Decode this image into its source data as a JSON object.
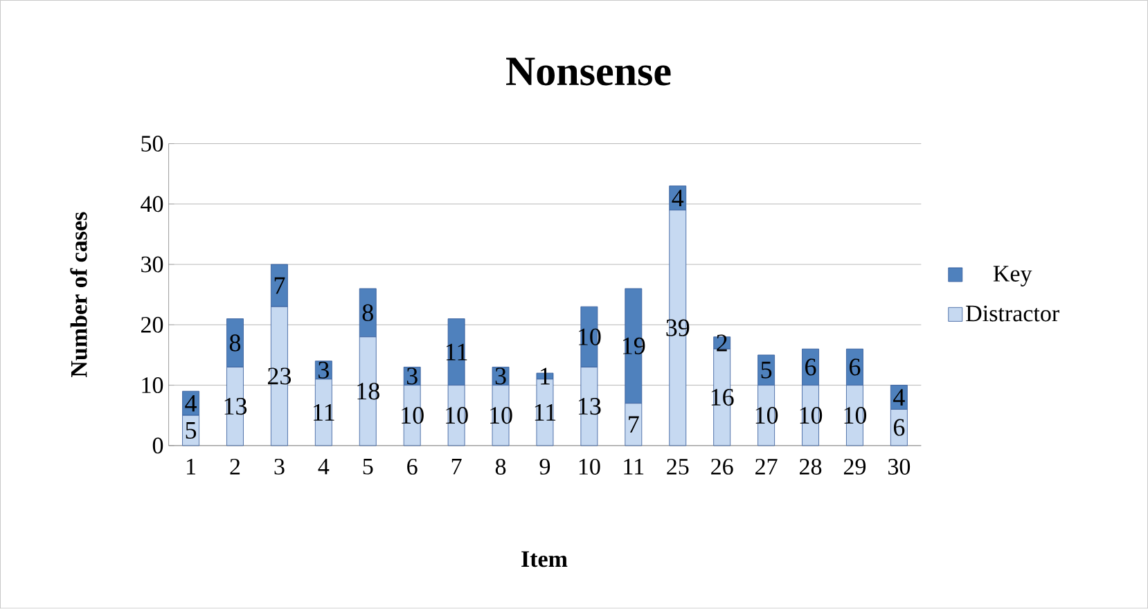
{
  "chart_data": {
    "type": "bar",
    "title": "Nonsense",
    "xlabel": "Item",
    "ylabel": "Number of cases",
    "categories": [
      "1",
      "2",
      "3",
      "4",
      "5",
      "6",
      "7",
      "8",
      "9",
      "10",
      "11",
      "25",
      "26",
      "27",
      "28",
      "29",
      "30"
    ],
    "series": [
      {
        "name": "Distractor",
        "color": "#c6d9f1",
        "values": [
          5,
          13,
          23,
          11,
          18,
          10,
          10,
          10,
          11,
          13,
          7,
          39,
          16,
          10,
          10,
          10,
          6
        ]
      },
      {
        "name": "Key",
        "color": "#4f81bd",
        "values": [
          4,
          8,
          7,
          3,
          8,
          3,
          11,
          3,
          1,
          10,
          19,
          4,
          2,
          5,
          6,
          6,
          4
        ]
      }
    ],
    "stacked": true,
    "data_labels": true,
    "grid": "y",
    "legend": "right",
    "ylim": [
      0,
      50
    ],
    "yticks": [
      0,
      10,
      20,
      30,
      40,
      50
    ]
  }
}
